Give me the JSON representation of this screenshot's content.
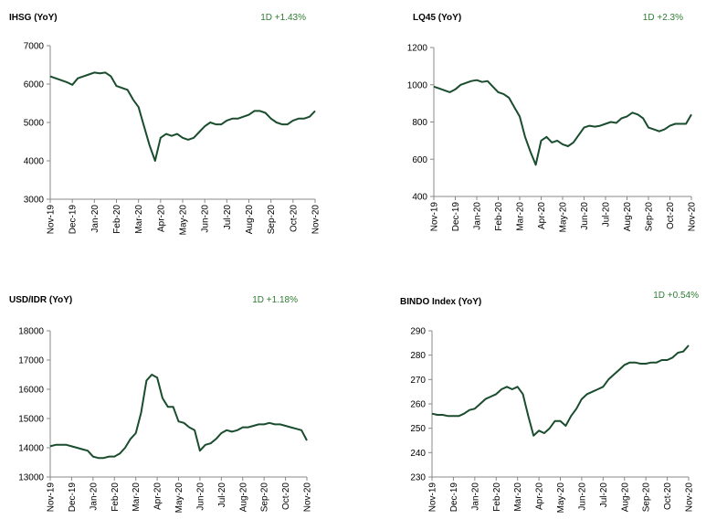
{
  "chart_data": [
    {
      "type": "line",
      "title": "IHSG (YoY)",
      "annotation": "1D +1.43%",
      "color": "#1a4d2e",
      "x": [
        0,
        0.25,
        0.5,
        0.75,
        1,
        1.25,
        1.5,
        1.75,
        2,
        2.25,
        2.5,
        2.75,
        3,
        3.25,
        3.5,
        3.75,
        4,
        4.25,
        4.5,
        4.75,
        5,
        5.25,
        5.5,
        5.75,
        6,
        6.25,
        6.5,
        6.75,
        7,
        7.25,
        7.5,
        7.75,
        8,
        8.25,
        8.5,
        8.75,
        9,
        9.25,
        9.5,
        9.75,
        10,
        10.25,
        10.5,
        10.75,
        11,
        11.25,
        11.5,
        11.75,
        12
      ],
      "values": [
        6200,
        6150,
        6100,
        6050,
        5980,
        6150,
        6200,
        6250,
        6300,
        6280,
        6300,
        6200,
        5950,
        5900,
        5850,
        5600,
        5400,
        4900,
        4400,
        4000,
        4600,
        4700,
        4650,
        4700,
        4600,
        4550,
        4600,
        4750,
        4900,
        5000,
        4950,
        4950,
        5050,
        5100,
        5100,
        5150,
        5200,
        5300,
        5300,
        5250,
        5100,
        5000,
        4950,
        4950,
        5050,
        5100,
        5100,
        5150,
        5300
      ],
      "xlim": [
        0,
        12
      ],
      "xticks": [
        {
          "value": 0,
          "label": "Nov-19"
        },
        {
          "value": 1,
          "label": "Dec-19"
        },
        {
          "value": 2,
          "label": "Jan-20"
        },
        {
          "value": 3,
          "label": "Feb-20"
        },
        {
          "value": 4,
          "label": "Mar-20"
        },
        {
          "value": 5,
          "label": "Apr-20"
        },
        {
          "value": 6,
          "label": "May-20"
        },
        {
          "value": 7,
          "label": "Jun-20"
        },
        {
          "value": 8,
          "label": "Jul-20"
        },
        {
          "value": 9,
          "label": "Aug-20"
        },
        {
          "value": 10,
          "label": "Sep-20"
        },
        {
          "value": 11,
          "label": "Oct-20"
        },
        {
          "value": 12,
          "label": "Nov-20"
        }
      ],
      "ylim": [
        3000,
        7000
      ],
      "yticks": [
        3000,
        4000,
        5000,
        6000,
        7000
      ]
    },
    {
      "type": "line",
      "title": "LQ45 (YoY)",
      "annotation": "1D +2.3%",
      "color": "#1a4d2e",
      "x": [
        0,
        0.25,
        0.5,
        0.75,
        1,
        1.25,
        1.5,
        1.75,
        2,
        2.25,
        2.5,
        2.75,
        3,
        3.25,
        3.5,
        3.75,
        4,
        4.25,
        4.5,
        4.75,
        5,
        5.25,
        5.5,
        5.75,
        6,
        6.25,
        6.5,
        6.75,
        7,
        7.25,
        7.5,
        7.75,
        8,
        8.25,
        8.5,
        8.75,
        9,
        9.25,
        9.5,
        9.75,
        10,
        10.25,
        10.5,
        10.75,
        11,
        11.25,
        11.5,
        11.75,
        12
      ],
      "values": [
        990,
        980,
        970,
        960,
        975,
        1000,
        1010,
        1020,
        1025,
        1015,
        1020,
        990,
        960,
        950,
        930,
        880,
        830,
        720,
        640,
        570,
        700,
        720,
        690,
        700,
        680,
        670,
        690,
        730,
        770,
        780,
        775,
        780,
        790,
        800,
        795,
        820,
        830,
        850,
        840,
        820,
        770,
        760,
        750,
        760,
        780,
        790,
        790,
        790,
        840
      ],
      "xlim": [
        0,
        12
      ],
      "xticks": [
        {
          "value": 0,
          "label": "Nov-19"
        },
        {
          "value": 1,
          "label": "Dec-19"
        },
        {
          "value": 2,
          "label": "Jan-20"
        },
        {
          "value": 3,
          "label": "Feb-20"
        },
        {
          "value": 4,
          "label": "Mar-20"
        },
        {
          "value": 5,
          "label": "Apr-20"
        },
        {
          "value": 6,
          "label": "May-20"
        },
        {
          "value": 7,
          "label": "Jun-20"
        },
        {
          "value": 8,
          "label": "Jul-20"
        },
        {
          "value": 9,
          "label": "Aug-20"
        },
        {
          "value": 10,
          "label": "Sep-20"
        },
        {
          "value": 11,
          "label": "Oct-20"
        },
        {
          "value": 12,
          "label": "Nov-20"
        }
      ],
      "ylim": [
        400,
        1200
      ],
      "yticks": [
        400,
        600,
        800,
        1000,
        1200
      ]
    },
    {
      "type": "line",
      "title": "USD/IDR  (YoY)",
      "annotation": "1D +1.18%",
      "color": "#1a4d2e",
      "x": [
        0,
        0.25,
        0.5,
        0.75,
        1,
        1.25,
        1.5,
        1.75,
        2,
        2.25,
        2.5,
        2.75,
        3,
        3.25,
        3.5,
        3.75,
        4,
        4.25,
        4.5,
        4.75,
        5,
        5.25,
        5.5,
        5.75,
        6,
        6.25,
        6.5,
        6.75,
        7,
        7.25,
        7.5,
        7.75,
        8,
        8.25,
        8.5,
        8.75,
        9,
        9.25,
        9.5,
        9.75,
        10,
        10.25,
        10.5,
        10.75,
        11,
        11.25,
        11.5,
        11.75,
        12
      ],
      "values": [
        14050,
        14100,
        14100,
        14100,
        14050,
        14000,
        13950,
        13900,
        13700,
        13650,
        13650,
        13700,
        13700,
        13800,
        14000,
        14300,
        14500,
        15200,
        16300,
        16500,
        16400,
        15700,
        15400,
        15400,
        14900,
        14850,
        14700,
        14600,
        13900,
        14100,
        14150,
        14300,
        14500,
        14600,
        14550,
        14600,
        14700,
        14700,
        14750,
        14800,
        14800,
        14850,
        14800,
        14800,
        14750,
        14700,
        14650,
        14600,
        14250
      ],
      "xlim": [
        0,
        12
      ],
      "xticks": [
        {
          "value": 0,
          "label": "Nov-19"
        },
        {
          "value": 1,
          "label": "Dec-19"
        },
        {
          "value": 2,
          "label": "Jan-20"
        },
        {
          "value": 3,
          "label": "Feb-20"
        },
        {
          "value": 4,
          "label": "Mar-20"
        },
        {
          "value": 5,
          "label": "Apr-20"
        },
        {
          "value": 6,
          "label": "May-20"
        },
        {
          "value": 7,
          "label": "Jun-20"
        },
        {
          "value": 8,
          "label": "Jul-20"
        },
        {
          "value": 9,
          "label": "Aug-20"
        },
        {
          "value": 10,
          "label": "Sep-20"
        },
        {
          "value": 11,
          "label": "Oct-20"
        },
        {
          "value": 12,
          "label": "Nov-20"
        }
      ],
      "ylim": [
        13000,
        18000
      ],
      "yticks": [
        13000,
        14000,
        15000,
        16000,
        17000,
        18000
      ]
    },
    {
      "type": "line",
      "title": "BINDO Index (YoY)",
      "annotation": "1D +0.54%",
      "color": "#1a4d2e",
      "x": [
        0,
        0.25,
        0.5,
        0.75,
        1,
        1.25,
        1.5,
        1.75,
        2,
        2.25,
        2.5,
        2.75,
        3,
        3.25,
        3.5,
        3.75,
        4,
        4.25,
        4.5,
        4.75,
        5,
        5.25,
        5.5,
        5.75,
        6,
        6.25,
        6.5,
        6.75,
        7,
        7.25,
        7.5,
        7.75,
        8,
        8.25,
        8.5,
        8.75,
        9,
        9.25,
        9.5,
        9.75,
        10,
        10.25,
        10.5,
        10.75,
        11,
        11.25,
        11.5,
        11.75,
        12
      ],
      "values": [
        256,
        255.5,
        255.5,
        255,
        255,
        255,
        256,
        257.5,
        258,
        260,
        262,
        263,
        264,
        266,
        267,
        266,
        267,
        264,
        255,
        247,
        249,
        248,
        250,
        253,
        253,
        251,
        255,
        258,
        262,
        264,
        265,
        266,
        267,
        270,
        272,
        274,
        276,
        277,
        277,
        276.5,
        276.5,
        277,
        277,
        278,
        278,
        279,
        281,
        281.5,
        284
      ],
      "xlim": [
        0,
        12
      ],
      "xticks": [
        {
          "value": 0,
          "label": "Nov-19"
        },
        {
          "value": 1,
          "label": "Dec-19"
        },
        {
          "value": 2,
          "label": "Jan-20"
        },
        {
          "value": 3,
          "label": "Feb-20"
        },
        {
          "value": 4,
          "label": "Mar-20"
        },
        {
          "value": 5,
          "label": "Apr-20"
        },
        {
          "value": 6,
          "label": "May-20"
        },
        {
          "value": 7,
          "label": "Jun-20"
        },
        {
          "value": 8,
          "label": "Jul-20"
        },
        {
          "value": 9,
          "label": "Aug-20"
        },
        {
          "value": 10,
          "label": "Sep-20"
        },
        {
          "value": 11,
          "label": "Oct-20"
        },
        {
          "value": 12,
          "label": "Nov-20"
        }
      ],
      "ylim": [
        230,
        290
      ],
      "yticks": [
        230,
        240,
        250,
        260,
        270,
        280,
        290
      ]
    }
  ]
}
